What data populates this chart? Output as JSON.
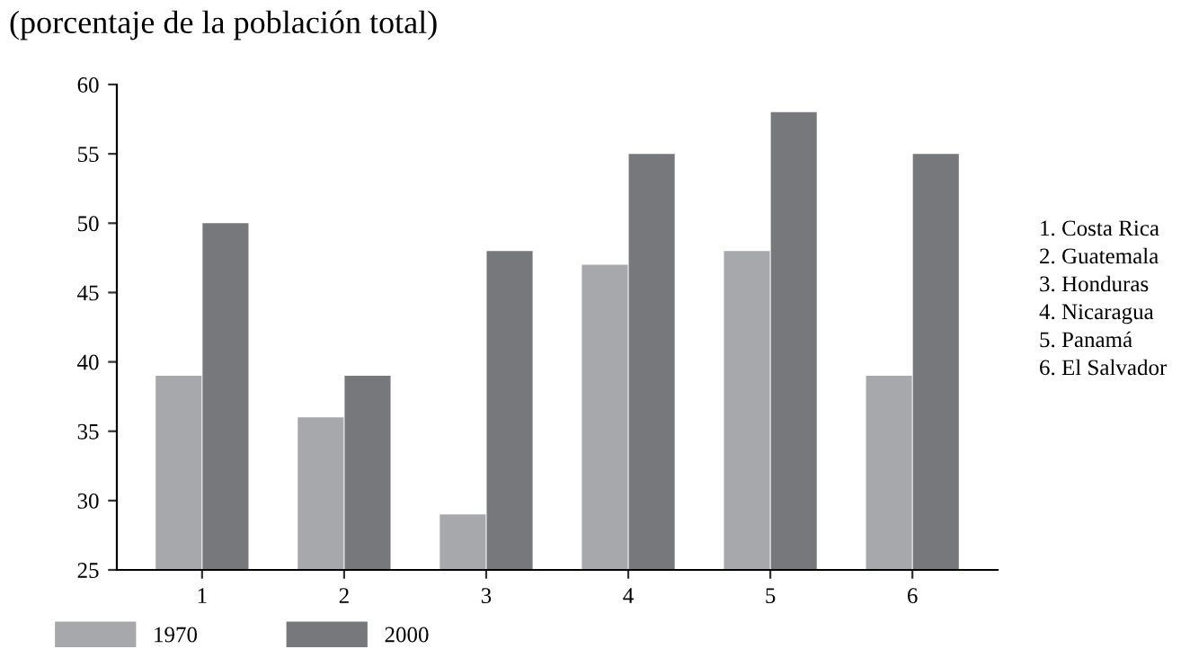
{
  "chart_data": {
    "type": "bar",
    "title": "(porcentaje de la población total)",
    "categories": [
      "1",
      "2",
      "3",
      "4",
      "5",
      "6"
    ],
    "series": [
      {
        "name": "1970",
        "color": "#a7a8ab",
        "values": [
          39,
          36,
          29,
          47,
          48,
          39
        ]
      },
      {
        "name": "2000",
        "color": "#77787b",
        "values": [
          50,
          39,
          48,
          55,
          58,
          55
        ]
      }
    ],
    "ylim": [
      25,
      60
    ],
    "yticks": [
      25,
      30,
      35,
      40,
      45,
      50,
      55,
      60
    ],
    "grid": false,
    "legend": "bottom left",
    "annotations": [
      "1. Costa Rica",
      "2. Guatemala",
      "3. Honduras",
      "4. Nicaragua",
      "5. Panamá",
      "6. El Salvador"
    ]
  }
}
